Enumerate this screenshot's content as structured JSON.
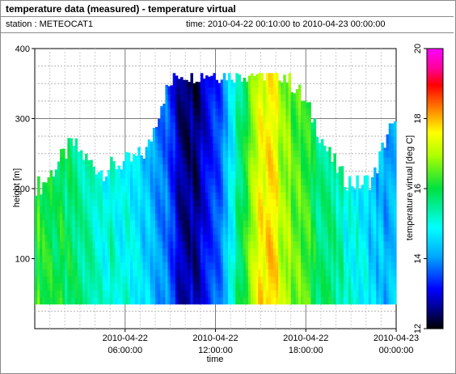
{
  "header": {
    "title": "temperature data (measured) - temperature virtual",
    "station": "station : METEOCAT1",
    "time_range": "time: 2010-04-22 00:10:00 to 2010-04-23 00:00:00"
  },
  "chart_data": {
    "type": "heatmap",
    "title": "temperature data (measured) - temperature virtual",
    "xlabel": "time",
    "ylabel": "height [m]",
    "colorbar_label": "temperature virtual [deg C]",
    "xlim_hours": [
      0,
      24
    ],
    "ylim": [
      0,
      400
    ],
    "x_ticks": [
      {
        "hour": 6,
        "label_date": "2010-04-22",
        "label_time": "06:00:00"
      },
      {
        "hour": 12,
        "label_date": "2010-04-22",
        "label_time": "12:00:00"
      },
      {
        "hour": 18,
        "label_date": "2010-04-22",
        "label_time": "18:00:00"
      },
      {
        "hour": 24,
        "label_date": "2010-04-23",
        "label_time": "00:00:00"
      }
    ],
    "y_ticks": [
      100,
      200,
      300,
      400
    ],
    "colorbar_range": [
      12,
      20
    ],
    "colorbar_ticks": [
      12,
      14,
      16,
      18,
      20
    ],
    "height_range": [
      35,
      365
    ],
    "grid": true,
    "profile_max_height_hourly": [
      205,
      235,
      265,
      240,
      225,
      235,
      240,
      255,
      330,
      365,
      365,
      365,
      365,
      365,
      365,
      365,
      365,
      340,
      300,
      250,
      215,
      205,
      215,
      285
    ],
    "temperature_hourly_deg_c": [
      16.3,
      16.0,
      15.7,
      15.5,
      15.3,
      15.1,
      14.8,
      14.5,
      14.2,
      13.0,
      12.8,
      13.4,
      14.2,
      15.8,
      17.2,
      17.9,
      17.2,
      16.6,
      16.1,
      15.7,
      15.3,
      15.0,
      14.5,
      14.2
    ]
  }
}
